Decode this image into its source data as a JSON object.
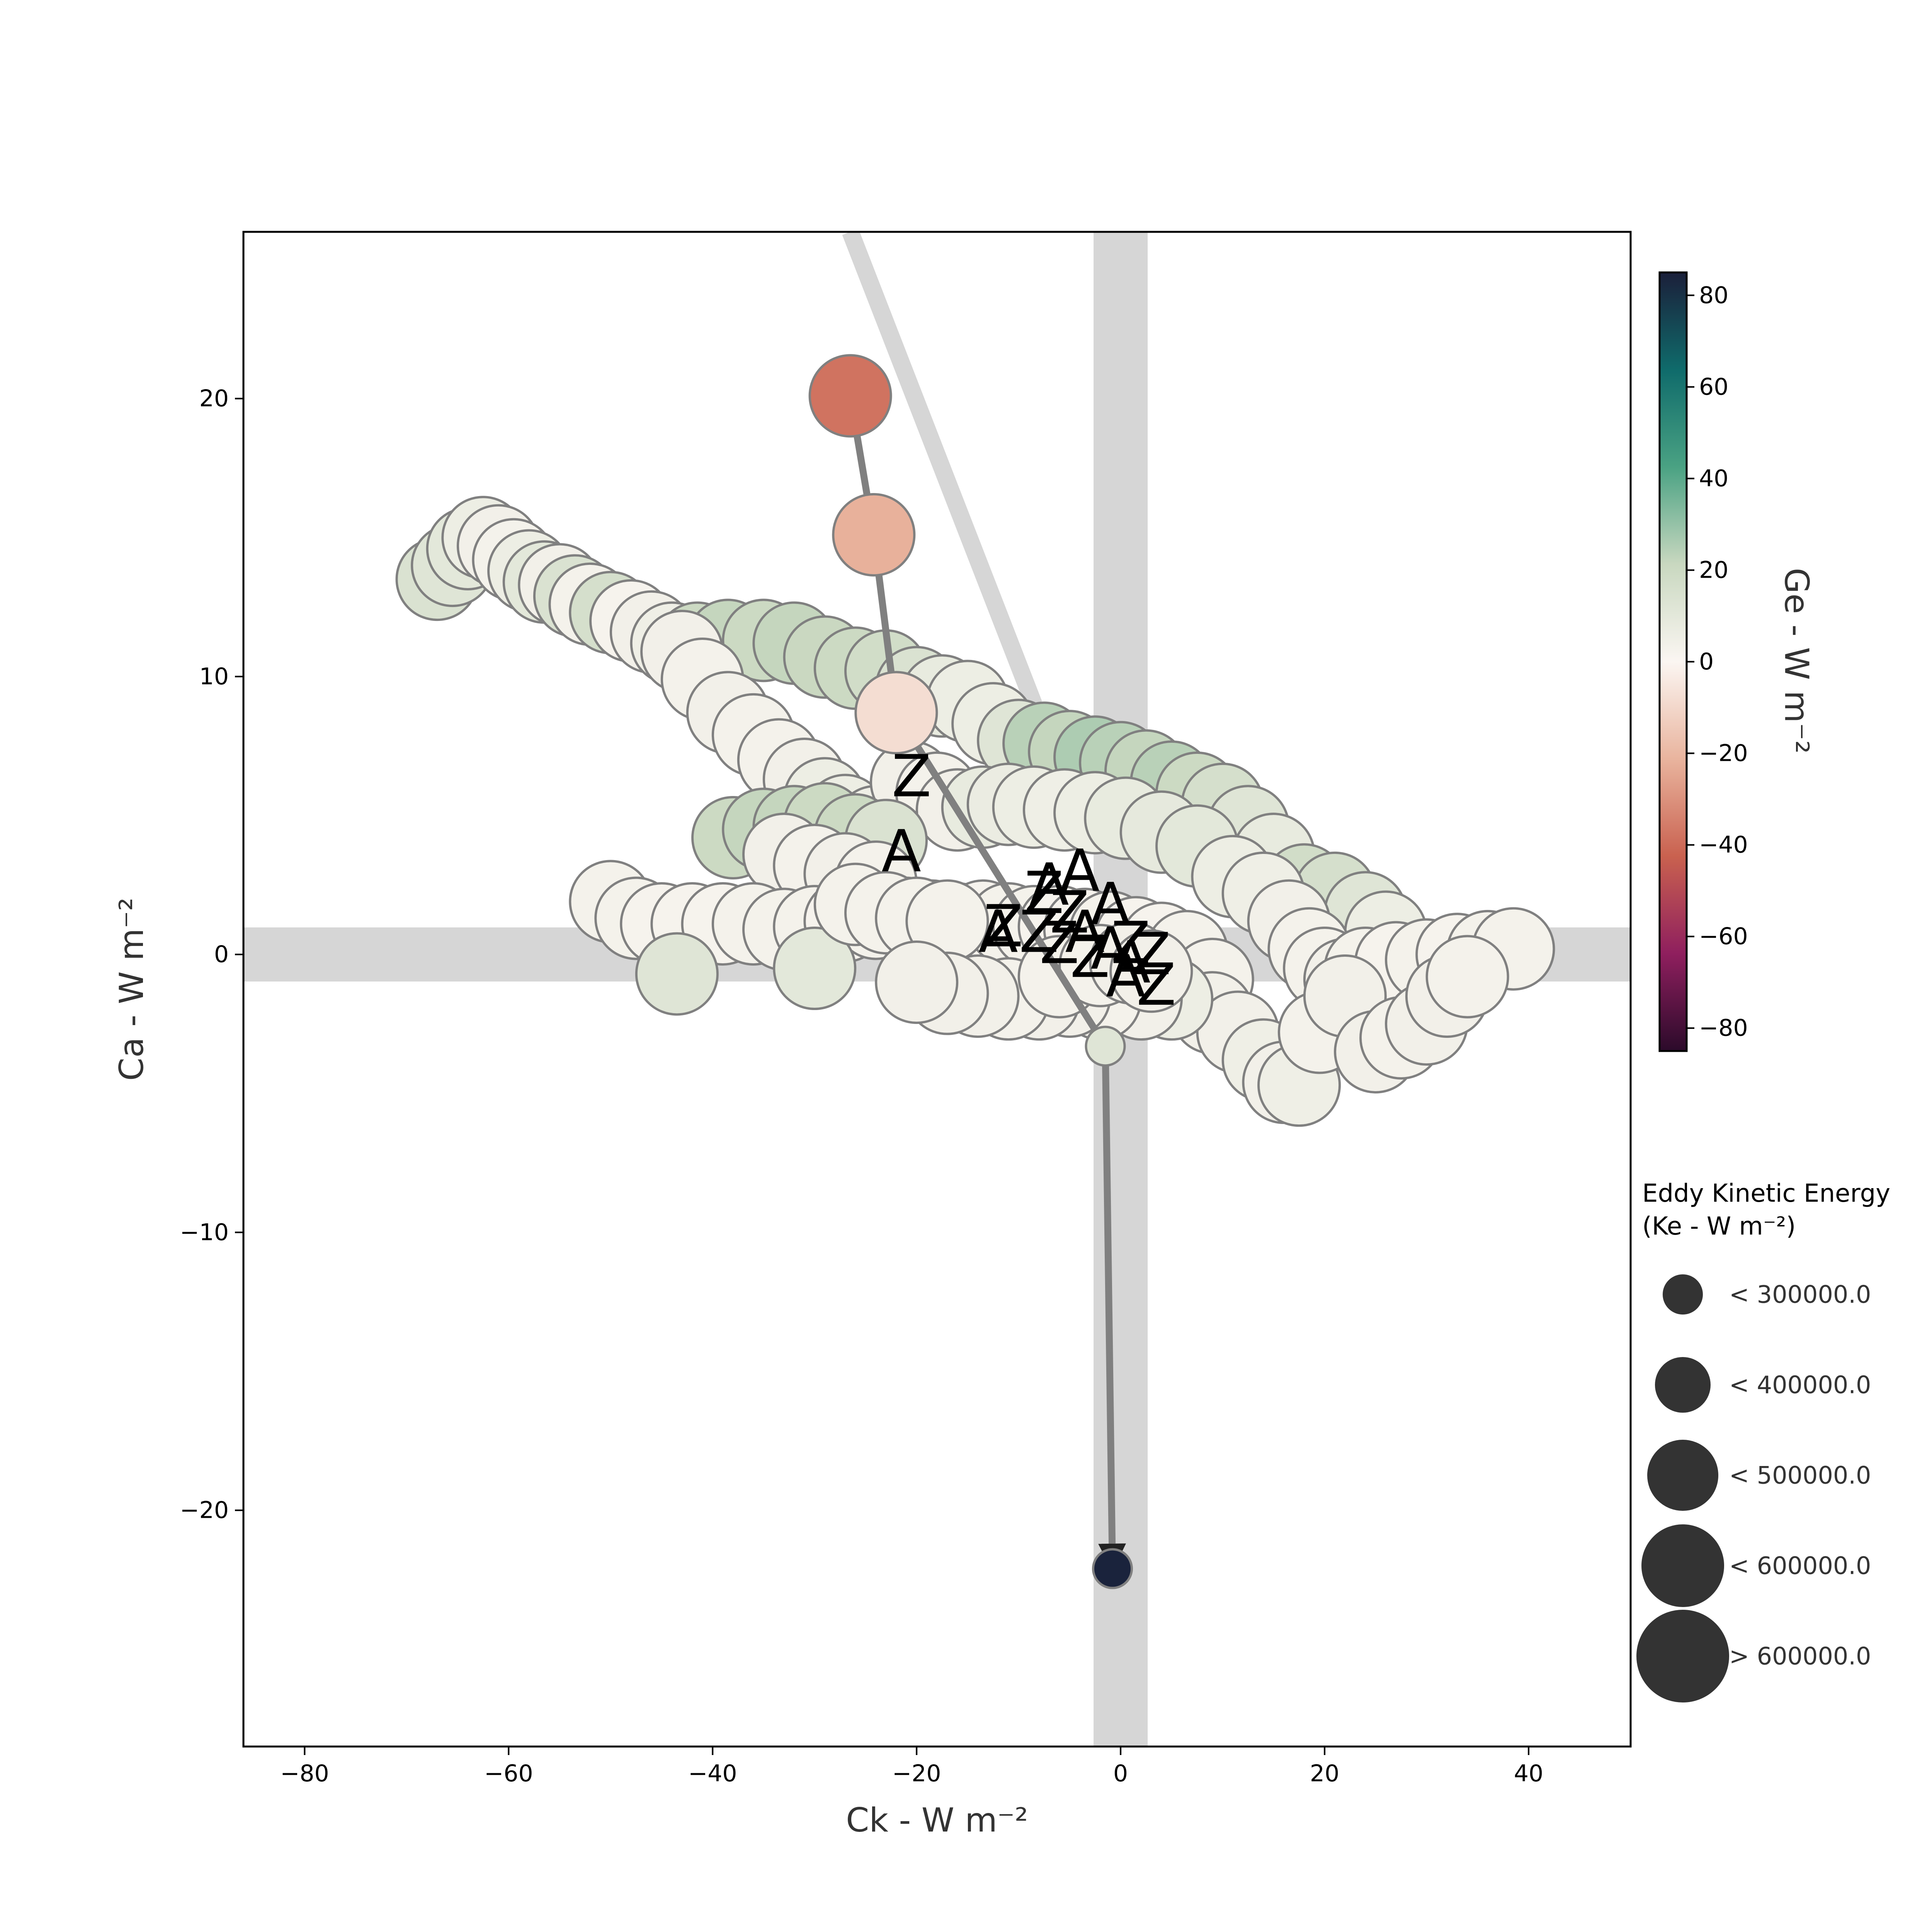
{
  "chart_data": {
    "type": "scatter",
    "xlabel": "Ck - W m⁻²",
    "ylabel": "Ca - W m⁻²",
    "colorbar_label": "Ge - W m⁻²",
    "xlim": [
      -86,
      50
    ],
    "ylim": [
      -28.5,
      26
    ],
    "x_ticks": [
      -80,
      -60,
      -40,
      -20,
      0,
      20,
      40
    ],
    "x_tick_labels": [
      "−80",
      "−60",
      "−40",
      "−20",
      "0",
      "20",
      "40"
    ],
    "y_ticks": [
      20,
      10,
      0,
      -10,
      -20
    ],
    "y_tick_labels": [
      "20",
      "10",
      "0",
      "−10",
      "−20"
    ],
    "colorbar": {
      "range": [
        -85,
        85
      ],
      "ticks": [
        80,
        60,
        40,
        20,
        0,
        -20,
        -40,
        -60,
        -80
      ],
      "tick_labels": [
        "80",
        "60",
        "40",
        "20",
        "0",
        "−20",
        "−40",
        "−60",
        "−80"
      ],
      "colors": [
        "#1b1f3a",
        "#0f6b6b",
        "#4aa283",
        "#c9d8c0",
        "#fbf6f2",
        "#e9b49e",
        "#c9614f",
        "#8f1f5e",
        "#2b0a2a"
      ]
    },
    "size_legend": {
      "title_line1": "Eddy Kinetic Energy",
      "title_line2": "(Ke - W m⁻²)",
      "entries": [
        {
          "label": "< 300000.0",
          "size": 1
        },
        {
          "label": "< 400000.0",
          "size": 2
        },
        {
          "label": "< 500000.0",
          "size": 3
        },
        {
          "label": "< 600000.0",
          "size": 4
        },
        {
          "label": "> 600000.0",
          "size": 5
        }
      ]
    },
    "reference_lines": {
      "vertical_x": 0,
      "horizontal_y": 0,
      "diagonal": [
        [
          -26.5,
          26
        ],
        [
          -8.5,
          9
        ]
      ]
    },
    "highlight_track": [
      {
        "x": -26.5,
        "y": 20.1,
        "ge": -38,
        "size": 4
      },
      {
        "x": -24.2,
        "y": 15.1,
        "ge": -22,
        "size": 4
      },
      {
        "x": -22.0,
        "y": 8.7,
        "ge": -8,
        "size": 4
      },
      {
        "x": -1.5,
        "y": -3.3,
        "ge": 12,
        "size": 1
      },
      {
        "x": -0.8,
        "y": -22.1,
        "ge": 84,
        "size": 1
      }
    ],
    "series": [
      {
        "size": 4,
        "points": [
          [
            -67,
            13.5,
            14
          ],
          [
            -65.5,
            14,
            12
          ],
          [
            -64,
            14.6,
            10
          ],
          [
            -62.5,
            15,
            6
          ],
          [
            -61,
            14.7,
            4
          ],
          [
            -59.5,
            14.2,
            3
          ],
          [
            -58,
            13.8,
            6
          ],
          [
            -56.5,
            13.4,
            10
          ],
          [
            -55,
            13.3,
            4
          ],
          [
            -53.5,
            12.9,
            14
          ],
          [
            -52,
            12.6,
            3
          ],
          [
            -50,
            12.3,
            16
          ],
          [
            -48,
            12,
            2
          ],
          [
            -46,
            11.6,
            4
          ],
          [
            -44,
            11.2,
            5
          ],
          [
            -41.5,
            11.2,
            20
          ],
          [
            -38.5,
            11.3,
            22
          ],
          [
            -35,
            11.3,
            20
          ],
          [
            -32,
            11.2,
            22
          ],
          [
            -29,
            10.7,
            21
          ],
          [
            -26,
            10.3,
            20
          ],
          [
            -23,
            10.2,
            18
          ],
          [
            -20,
            9.6,
            14
          ],
          [
            -17.5,
            9.3,
            8
          ],
          [
            -15,
            9.1,
            6
          ],
          [
            -12.5,
            8.3,
            6
          ],
          [
            -10,
            7.7,
            12
          ],
          [
            -7.5,
            7.6,
            24
          ],
          [
            -5,
            7.3,
            22
          ],
          [
            -2.5,
            7.1,
            26
          ],
          [
            0,
            6.9,
            24
          ],
          [
            2.5,
            6.6,
            22
          ],
          [
            5,
            6.2,
            24
          ],
          [
            7.5,
            5.8,
            20
          ],
          [
            10,
            5.4,
            16
          ],
          [
            12.5,
            4.6,
            12
          ],
          [
            15,
            3.6,
            8
          ],
          [
            18,
            2.5,
            18
          ],
          [
            21,
            2.2,
            16
          ],
          [
            24,
            1.5,
            12
          ],
          [
            26,
            0.8,
            6
          ],
          [
            -43,
            10.9,
            4
          ],
          [
            -41,
            9.9,
            3
          ],
          [
            -38.5,
            8.7,
            4
          ],
          [
            -36,
            7.9,
            3
          ],
          [
            -33.5,
            7,
            3
          ],
          [
            -31,
            6.3,
            4
          ],
          [
            -29,
            5.6,
            6
          ],
          [
            -27,
            5,
            6
          ],
          [
            -24,
            4.6,
            5
          ],
          [
            -20.5,
            6.2,
            4
          ],
          [
            -18,
            5.8,
            3
          ],
          [
            -16,
            5.2,
            4
          ],
          [
            -38,
            4.2,
            20
          ],
          [
            -35,
            4.5,
            22
          ],
          [
            -32,
            4.6,
            22
          ],
          [
            -29,
            4.7,
            20
          ],
          [
            -26,
            4.3,
            20
          ],
          [
            -23,
            4.1,
            14
          ],
          [
            -33,
            3.6,
            4
          ],
          [
            -30,
            3.2,
            3
          ],
          [
            -27,
            2.9,
            4
          ],
          [
            -24,
            2.6,
            3
          ],
          [
            -13.5,
            5.3,
            8
          ],
          [
            -11,
            5.4,
            7
          ],
          [
            -8.5,
            5.3,
            6
          ],
          [
            -5.5,
            5.2,
            5
          ],
          [
            -2.5,
            5.1,
            6
          ],
          [
            0.5,
            4.9,
            8
          ],
          [
            4,
            4.4,
            9
          ],
          [
            7.5,
            3.9,
            10
          ],
          [
            11,
            2.8,
            6
          ],
          [
            14,
            2.2,
            5
          ],
          [
            16.5,
            1.2,
            4
          ],
          [
            18.5,
            0.2,
            3
          ],
          [
            20,
            -0.5,
            3
          ],
          [
            22,
            -0.9,
            4
          ],
          [
            24,
            -0.5,
            3
          ],
          [
            27,
            -0.3,
            2
          ],
          [
            30,
            -0.2,
            3
          ],
          [
            33,
            0,
            2
          ],
          [
            36,
            0.1,
            3
          ],
          [
            38.5,
            0.2,
            3
          ],
          [
            -50,
            1.9,
            3
          ],
          [
            -47.5,
            1.3,
            3
          ],
          [
            -45,
            1.1,
            2
          ],
          [
            -42,
            1.1,
            2
          ],
          [
            -39,
            1.1,
            2
          ],
          [
            -36,
            1.1,
            3
          ],
          [
            -33,
            0.9,
            3
          ],
          [
            -30,
            1,
            3
          ],
          [
            -27,
            1.2,
            2
          ],
          [
            -24,
            1.3,
            3
          ],
          [
            -21,
            1.3,
            3
          ],
          [
            -18.5,
            1.2,
            3
          ],
          [
            -16,
            1.1,
            2
          ],
          [
            -13.5,
            1.2,
            2
          ],
          [
            -11,
            1.1,
            3
          ],
          [
            -8.5,
            1,
            3
          ],
          [
            -6,
            1,
            2
          ],
          [
            -3.5,
            0.9,
            2
          ],
          [
            -1,
            0.8,
            3
          ],
          [
            1.5,
            0.6,
            2
          ],
          [
            4,
            0.4,
            2
          ],
          [
            6.5,
            0.1,
            3
          ],
          [
            9,
            -0.9,
            3
          ],
          [
            -43.5,
            -0.7,
            12
          ],
          [
            -30,
            -0.5,
            10
          ],
          [
            -26,
            1.8,
            3
          ],
          [
            -23,
            1.5,
            3
          ],
          [
            -20,
            1.3,
            3
          ],
          [
            -17,
            1.2,
            3
          ],
          [
            9,
            -2.1,
            4
          ],
          [
            11.5,
            -2.8,
            4
          ],
          [
            14,
            -3.8,
            5
          ],
          [
            16,
            -4.6,
            4
          ],
          [
            17.5,
            -4.7,
            5
          ],
          [
            19.5,
            -2.8,
            3
          ],
          [
            22,
            -1.5,
            4
          ],
          [
            25,
            -3.5,
            4
          ],
          [
            27.5,
            -3,
            3
          ],
          [
            30,
            -2.5,
            4
          ],
          [
            32,
            -1.5,
            4
          ],
          [
            34,
            -0.8,
            3
          ],
          [
            5,
            -1.6,
            6
          ],
          [
            2,
            -1.6,
            4
          ],
          [
            -2,
            -1.6,
            3
          ],
          [
            -5,
            -1.5,
            4
          ],
          [
            -8,
            -1.6,
            4
          ],
          [
            -11,
            -1.6,
            3
          ],
          [
            -14,
            -1.5,
            4
          ],
          [
            -17,
            -1.4,
            4
          ],
          [
            -20,
            -1,
            4
          ],
          [
            -6,
            -0.8,
            3
          ],
          [
            -2,
            -0.4,
            3
          ],
          [
            1,
            -0.3,
            4
          ],
          [
            3,
            -0.6,
            4
          ]
        ]
      }
    ],
    "track_labels": [
      {
        "text": "Z",
        "x": -20.5,
        "y": 6.4
      },
      {
        "text": "A",
        "x": -21.5,
        "y": 3.7
      },
      {
        "text": "A",
        "x": -4,
        "y": 3
      },
      {
        "text": "A",
        "x": -7,
        "y": 2.5
      },
      {
        "text": "Z",
        "x": -7.5,
        "y": 2.2
      },
      {
        "text": "Z",
        "x": -5,
        "y": 1.5
      },
      {
        "text": "A",
        "x": -12,
        "y": 0.8
      },
      {
        "text": "Z",
        "x": -11.5,
        "y": 1
      },
      {
        "text": "Z",
        "x": -8,
        "y": 0.8
      },
      {
        "text": "Z",
        "x": -6,
        "y": 0.4
      },
      {
        "text": "A",
        "x": -1,
        "y": 1.8
      },
      {
        "text": "A",
        "x": -3.5,
        "y": 0.8
      },
      {
        "text": "Z",
        "x": -3,
        "y": -0.1
      },
      {
        "text": "A",
        "x": -1,
        "y": 0.2
      },
      {
        "text": "Z",
        "x": 1,
        "y": 0.4
      },
      {
        "text": "A",
        "x": 0.5,
        "y": -0.8
      },
      {
        "text": "Z",
        "x": 3,
        "y": 0
      },
      {
        "text": "Z",
        "x": 3.5,
        "y": -1.1
      },
      {
        "text": "A",
        "x": 1,
        "y": -0.3
      }
    ]
  }
}
